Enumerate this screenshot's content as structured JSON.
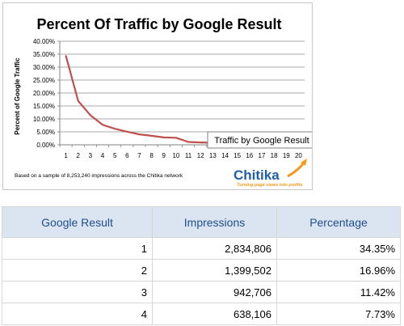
{
  "chart_data": {
    "type": "line",
    "title": "Percent Of Traffic by Google Result",
    "ylabel": "Percent of Google Traffic",
    "xlabel": "",
    "x": [
      1,
      2,
      3,
      4,
      5,
      6,
      7,
      8,
      9,
      10,
      11,
      12,
      13,
      14,
      15,
      16,
      17,
      18,
      19,
      20
    ],
    "series": [
      {
        "values": [
          34.35,
          16.96,
          11.42,
          7.73,
          6.19,
          5.05,
          4.02,
          3.47,
          2.85,
          2.71,
          1.1,
          0.9,
          0.79,
          0.6,
          0.55,
          0.45,
          0.45,
          0.4,
          0.37,
          0.32
        ]
      }
    ],
    "ylim": [
      0,
      40
    ],
    "yticks": [
      "0.00%",
      "5.00%",
      "10.00%",
      "15.00%",
      "20.00%",
      "25.00%",
      "30.00%",
      "35.00%",
      "40.00%"
    ],
    "xticks": [
      "1",
      "2",
      "3",
      "4",
      "5",
      "6",
      "7",
      "8",
      "9",
      "10",
      "11",
      "12",
      "13",
      "14",
      "15",
      "16",
      "17",
      "18",
      "19",
      "20"
    ],
    "grid": true,
    "series_color": "#c0504d",
    "footnote": "Based on a sample of 8,253,240 impressions across the Chitika network",
    "tooltip": "Traffic by Google Result",
    "brand": {
      "name": "Chitika",
      "tagline": "Turning page views into profits"
    }
  },
  "table": {
    "headers": [
      "Google Result",
      "Impressions",
      "Percentage"
    ],
    "rows": [
      [
        "1",
        "2,834,806",
        "34.35%"
      ],
      [
        "2",
        "1,399,502",
        "16.96%"
      ],
      [
        "3",
        "942,706",
        "11.42%"
      ],
      [
        "4",
        "638,106",
        "7.73%"
      ]
    ],
    "header_bg": "#dbe5f1",
    "header_color": "#1f4e8c"
  }
}
